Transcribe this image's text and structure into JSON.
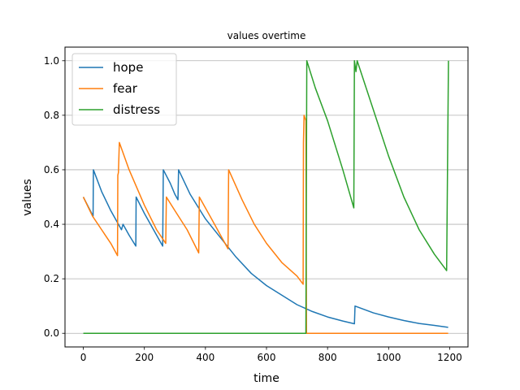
{
  "chart_data": {
    "type": "line",
    "title": "values overtime",
    "xlabel": "time",
    "ylabel": "values",
    "xlim": [
      -60,
      1260
    ],
    "ylim": [
      -0.05,
      1.05
    ],
    "xticks": [
      "0",
      "200",
      "400",
      "600",
      "800",
      "1000",
      "1200"
    ],
    "yticks": [
      "0.0",
      "0.2",
      "0.4",
      "0.6",
      "0.8",
      "1.0"
    ],
    "grid": "horizontal",
    "legend_position": "top-left",
    "series": [
      {
        "name": "hope",
        "color": "#1f77b4",
        "points": [
          [
            0,
            0.5
          ],
          [
            32,
            0.43
          ],
          [
            33,
            0.6
          ],
          [
            60,
            0.52
          ],
          [
            90,
            0.45
          ],
          [
            125,
            0.38
          ],
          [
            130,
            0.4
          ],
          [
            150,
            0.36
          ],
          [
            172,
            0.32
          ],
          [
            173,
            0.5
          ],
          [
            200,
            0.44
          ],
          [
            230,
            0.38
          ],
          [
            260,
            0.32
          ],
          [
            262,
            0.6
          ],
          [
            285,
            0.55
          ],
          [
            300,
            0.51
          ],
          [
            310,
            0.49
          ],
          [
            312,
            0.6
          ],
          [
            350,
            0.51
          ],
          [
            400,
            0.42
          ],
          [
            450,
            0.35
          ],
          [
            500,
            0.28
          ],
          [
            550,
            0.22
          ],
          [
            600,
            0.175
          ],
          [
            650,
            0.14
          ],
          [
            700,
            0.105
          ],
          [
            750,
            0.08
          ],
          [
            800,
            0.06
          ],
          [
            850,
            0.045
          ],
          [
            888,
            0.035
          ],
          [
            890,
            0.1
          ],
          [
            950,
            0.075
          ],
          [
            1000,
            0.06
          ],
          [
            1050,
            0.047
          ],
          [
            1100,
            0.036
          ],
          [
            1150,
            0.029
          ],
          [
            1195,
            0.022
          ]
        ]
      },
      {
        "name": "fear",
        "color": "#ff7f0e",
        "points": [
          [
            0,
            0.5
          ],
          [
            30,
            0.43
          ],
          [
            60,
            0.38
          ],
          [
            90,
            0.33
          ],
          [
            112,
            0.285
          ],
          [
            113,
            0.58
          ],
          [
            115,
            0.59
          ],
          [
            118,
            0.7
          ],
          [
            150,
            0.6
          ],
          [
            200,
            0.47
          ],
          [
            240,
            0.38
          ],
          [
            270,
            0.33
          ],
          [
            272,
            0.5
          ],
          [
            300,
            0.45
          ],
          [
            340,
            0.38
          ],
          [
            378,
            0.295
          ],
          [
            380,
            0.5
          ],
          [
            420,
            0.42
          ],
          [
            474,
            0.31
          ],
          [
            476,
            0.6
          ],
          [
            520,
            0.49
          ],
          [
            560,
            0.4
          ],
          [
            600,
            0.33
          ],
          [
            650,
            0.26
          ],
          [
            700,
            0.21
          ],
          [
            720,
            0.18
          ],
          [
            721,
            0.7
          ],
          [
            723,
            0.8
          ],
          [
            729,
            0.78
          ],
          [
            731,
            0.0
          ],
          [
            800,
            0.0
          ],
          [
            1000,
            0.0
          ],
          [
            1195,
            0.0
          ]
        ]
      },
      {
        "name": "distress",
        "color": "#2ca02c",
        "points": [
          [
            0,
            0.0
          ],
          [
            200,
            0.0
          ],
          [
            400,
            0.0
          ],
          [
            600,
            0.0
          ],
          [
            729,
            0.0
          ],
          [
            732,
            1.0
          ],
          [
            760,
            0.9
          ],
          [
            800,
            0.78
          ],
          [
            850,
            0.6
          ],
          [
            886,
            0.46
          ],
          [
            888,
            1.0
          ],
          [
            893,
            0.96
          ],
          [
            897,
            1.0
          ],
          [
            950,
            0.82
          ],
          [
            1000,
            0.65
          ],
          [
            1050,
            0.5
          ],
          [
            1100,
            0.38
          ],
          [
            1150,
            0.29
          ],
          [
            1190,
            0.23
          ],
          [
            1196,
            1.0
          ]
        ]
      }
    ]
  }
}
